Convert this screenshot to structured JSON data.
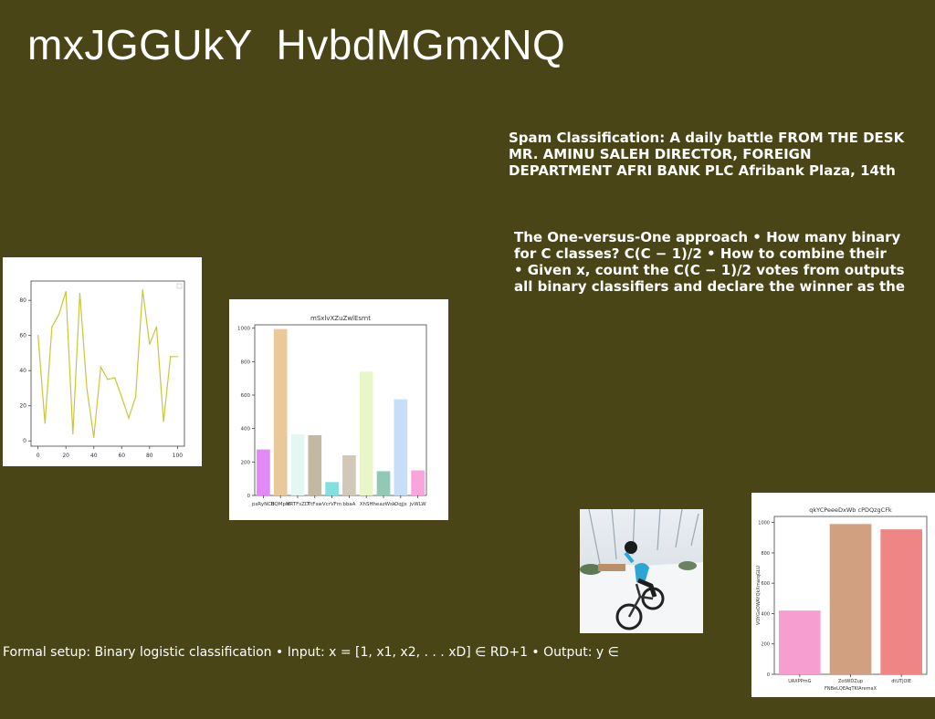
{
  "slide": {
    "title": "mxJGGUkY  HvbdMGmxNQ",
    "spam_lines": [
      "Spam Classification: A daily battle FROM THE DESK",
      "MR. AMINU SALEH DIRECTOR, FOREIGN",
      "DEPARTMENT AFRI BANK PLC Afribank Plaza, 14th"
    ],
    "ovo_lines": [
      "The One-versus-One approach • How many binary",
      "for C classes? C(C − 1)/2 • How to combine their",
      "• Given x, count the C(C − 1)/2 votes from outputs",
      "all binary classifiers and declare the winner as the"
    ],
    "formal_setup": "Formal setup: Binary logistic classification • Input: x = [1, x1, x2, . . . xD] ∈ RD+1 • Output: y ∈"
  },
  "photo": {
    "icon": "bmx-rider-photo"
  },
  "chart_data": [
    {
      "type": "line",
      "x": [
        0,
        5,
        10,
        15,
        20,
        25,
        30,
        35,
        40,
        45,
        50,
        55,
        60,
        65,
        70,
        75,
        80,
        85,
        90,
        95,
        100
      ],
      "values": [
        60,
        10,
        65,
        72,
        85,
        4,
        84,
        30,
        2,
        42,
        35,
        36,
        25,
        13,
        25,
        86,
        55,
        65,
        11,
        48,
        48
      ],
      "xticks": [
        0,
        20,
        40,
        60,
        80,
        100
      ],
      "yticks": [
        0,
        20,
        40,
        60,
        80
      ],
      "xlim": [
        -5,
        105
      ],
      "ylim": [
        -3,
        91
      ],
      "color": "#c8c63a"
    },
    {
      "type": "bar",
      "title": "mSxlvXZuZwlEsrnt",
      "categories": [
        "psRyNCB",
        "BQMpM",
        "dRTFsZD",
        "TtFsw",
        "VcrVFm",
        "bbaA",
        "XhSH",
        "lheazWsk",
        "Oqjjs",
        "jvWLW"
      ],
      "values": [
        275,
        995,
        365,
        360,
        80,
        240,
        740,
        145,
        575,
        150
      ],
      "colors": [
        "#e18af6",
        "#e9c99a",
        "#e3f8f3",
        "#c2b9a0",
        "#82dfe0",
        "#d1c8b8",
        "#e9f7c8",
        "#92c9b6",
        "#c6dff9",
        "#f9a5dc"
      ],
      "yticks": [
        0,
        200,
        400,
        600,
        800,
        1000
      ],
      "ylim": [
        0,
        1020
      ]
    },
    {
      "type": "bar",
      "title": "qkYCPeeeDxWb cPDQzgCFk",
      "categories": [
        "UAXPPmG",
        "ZotWDZup",
        "dtUTjOIE"
      ],
      "values": [
        420,
        990,
        955
      ],
      "colors": [
        "#f79ed0",
        "#d1a080",
        "#ef8585"
      ],
      "xlabel": "FNBeLQEAqTKlAremaX",
      "ylabel": "VOYGxOWAYQkXmarqGLU",
      "yticks": [
        0,
        200,
        400,
        600,
        800,
        1000
      ],
      "ylim": [
        0,
        1040
      ]
    }
  ]
}
